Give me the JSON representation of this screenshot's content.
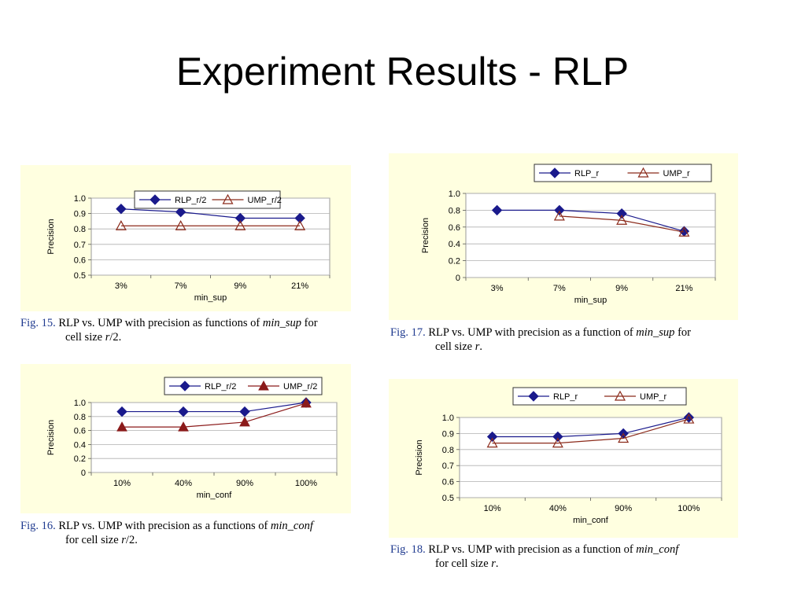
{
  "slide": {
    "title": "Experiment Results - RLP"
  },
  "chart_data": [
    {
      "type": "line",
      "categories": [
        "3%",
        "7%",
        "9%",
        "21%"
      ],
      "series": [
        {
          "name": "RLP_r/2",
          "values": [
            0.93,
            0.91,
            0.87,
            0.87
          ],
          "marker": "diamond-filled",
          "color": "#1a1a8c"
        },
        {
          "name": "UMP_r/2",
          "values": [
            0.82,
            0.82,
            0.82,
            0.82
          ],
          "marker": "triangle-open",
          "color": "#8b2a1a"
        }
      ],
      "xlabel": "min_sup",
      "ylabel": "Precision",
      "ylim": [
        0.5,
        1.0
      ],
      "yticks": [
        "0.5",
        "0.6",
        "0.7",
        "0.8",
        "0.9",
        "1.0"
      ],
      "grid": true,
      "legend": "top-right",
      "caption": {
        "fig": "Fig. 15.",
        "text": "RLP vs. UMP with precision as functions of",
        "italic": "min_sup",
        "after": "for",
        "line2_pre": "cell size",
        "line2_italic": "r",
        "line2_post": "/2."
      }
    },
    {
      "type": "line",
      "categories": [
        "3%",
        "7%",
        "9%",
        "21%"
      ],
      "series": [
        {
          "name": "RLP_r",
          "values": [
            0.8,
            0.8,
            0.76,
            0.55
          ],
          "marker": "diamond-filled",
          "color": "#1a1a8c"
        },
        {
          "name": "UMP_r",
          "values": [
            null,
            0.73,
            0.68,
            0.54
          ],
          "marker": "triangle-open",
          "color": "#8b2a1a"
        }
      ],
      "xlabel": "min_sup",
      "ylabel": "Precision",
      "ylim": [
        0,
        1.0
      ],
      "yticks": [
        "0",
        "0.2",
        "0.4",
        "0.6",
        "0.8",
        "1.0"
      ],
      "grid": true,
      "legend": "top-right",
      "caption": {
        "fig": "Fig. 17.",
        "text": "RLP vs. UMP with precision as a function of",
        "italic": "min_sup",
        "after": "for",
        "line2_pre": "cell size",
        "line2_italic": "r",
        "line2_post": "."
      }
    },
    {
      "type": "line",
      "categories": [
        "10%",
        "40%",
        "90%",
        "100%"
      ],
      "series": [
        {
          "name": "RLP_r/2",
          "values": [
            0.87,
            0.87,
            0.87,
            1.0
          ],
          "marker": "diamond-filled",
          "color": "#1a1a8c"
        },
        {
          "name": "UMP_r/2",
          "values": [
            0.65,
            0.65,
            0.72,
            0.99
          ],
          "marker": "triangle-filled",
          "color": "#8b1a1a"
        }
      ],
      "xlabel": "min_conf",
      "ylabel": "Precision",
      "ylim": [
        0,
        1.0
      ],
      "yticks": [
        "0",
        "0.2",
        "0.4",
        "0.6",
        "0.8",
        "1.0"
      ],
      "grid": true,
      "legend": "top-right",
      "caption": {
        "fig": "Fig. 16.",
        "text": "RLP vs. UMP with precision as a functions of",
        "italic": "min_conf",
        "after": "",
        "line2_pre": "for cell size",
        "line2_italic": "r",
        "line2_post": "/2."
      }
    },
    {
      "type": "line",
      "categories": [
        "10%",
        "40%",
        "90%",
        "100%"
      ],
      "series": [
        {
          "name": "RLP_r",
          "values": [
            0.88,
            0.88,
            0.9,
            1.0
          ],
          "marker": "diamond-filled",
          "color": "#1a1a8c"
        },
        {
          "name": "UMP_r",
          "values": [
            0.84,
            0.84,
            0.87,
            0.99
          ],
          "marker": "triangle-open",
          "color": "#8b2a1a"
        }
      ],
      "xlabel": "min_conf",
      "ylabel": "Precision",
      "ylim": [
        0.5,
        1.0
      ],
      "yticks": [
        "0.5",
        "0.6",
        "0.7",
        "0.8",
        "0.9",
        "1.0"
      ],
      "grid": true,
      "legend": "top-right",
      "caption": {
        "fig": "Fig. 18.",
        "text": "RLP vs. UMP with precision as a function of",
        "italic": "min_conf",
        "after": "",
        "line2_pre": "for cell size",
        "line2_italic": "r",
        "line2_post": "."
      }
    }
  ]
}
